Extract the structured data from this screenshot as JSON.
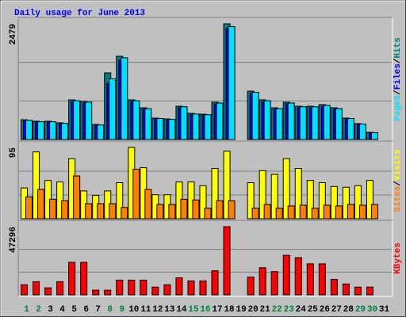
{
  "chart_data": {
    "type": "bar",
    "title": "Daily usage for June 2013",
    "separator": "/",
    "categories": [
      "1",
      "2",
      "3",
      "4",
      "5",
      "6",
      "7",
      "8",
      "9",
      "10",
      "11",
      "12",
      "13",
      "14",
      "15",
      "16",
      "17",
      "18",
      "19",
      "20",
      "21",
      "22",
      "23",
      "24",
      "25",
      "26",
      "27",
      "28",
      "29",
      "30",
      "31"
    ],
    "category_colors": [
      "#008040",
      "#008040",
      "#000000",
      "#000000",
      "#000000",
      "#000000",
      "#000000",
      "#008040",
      "#008040",
      "#000000",
      "#000000",
      "#000000",
      "#000000",
      "#000000",
      "#008040",
      "#008040",
      "#000000",
      "#000000",
      "#000000",
      "#000000",
      "#000000",
      "#008040",
      "#008040",
      "#000000",
      "#000000",
      "#000000",
      "#000000",
      "#000000",
      "#008040",
      "#008040",
      "#000000"
    ],
    "panels": [
      {
        "ylim": [
          0,
          2479
        ],
        "yticks": [
          2479
        ],
        "series": [
          {
            "name": "Hits",
            "color": "#008080",
            "values": [
              424,
              391,
              391,
              357,
              849,
              815,
              323,
              1426,
              1783,
              849,
              679,
              458,
              441,
              713,
              560,
              543,
              798,
              2479,
              null,
              1036,
              849,
              679,
              798,
              713,
              713,
              747,
              679,
              458,
              340,
              153,
              null
            ]
          },
          {
            "name": "Files",
            "color": "#0000ff",
            "values": [
              400,
              370,
              370,
              340,
              810,
              780,
              300,
              1200,
              1700,
              810,
              650,
              440,
              420,
              680,
              530,
              520,
              760,
              2380,
              null,
              990,
              810,
              650,
              760,
              680,
              680,
              710,
              650,
              440,
              320,
              140,
              null
            ]
          },
          {
            "name": "Pages",
            "color": "#00e0ff",
            "values": [
              410,
              380,
              380,
              345,
              830,
              800,
              310,
              1300,
              1750,
              830,
              660,
              450,
              430,
              700,
              545,
              530,
              780,
              2420,
              null,
              1010,
              830,
              660,
              780,
              700,
              700,
              730,
              660,
              450,
              330,
              145,
              null
            ]
          }
        ]
      },
      {
        "ylim": [
          0,
          95
        ],
        "yticks": [
          95
        ],
        "series": [
          {
            "name": "Visits",
            "color": "#ffff00",
            "values": [
              41,
              89,
              51,
              49,
              80,
              37,
              31,
              37,
              48,
              95,
              68,
              32,
              32,
              49,
              49,
              44,
              67,
              90,
              null,
              48,
              64,
              59,
              80,
              67,
              51,
              48,
              43,
              42,
              44,
              51,
              null
            ]
          },
          {
            "name": "Sites",
            "color": "#ff8000",
            "values": [
              29,
              39,
              26,
              24,
              57,
              20,
              20,
              20,
              15,
              66,
              39,
              19,
              19,
              26,
              25,
              14,
              24,
              24,
              null,
              14,
              19,
              14,
              17,
              18,
              14,
              18,
              17,
              19,
              18,
              19,
              null
            ]
          }
        ]
      },
      {
        "ylim": [
          0,
          47296
        ],
        "yticks": [
          47296
        ],
        "series": [
          {
            "name": "KBytes",
            "color": "#ff0000",
            "values": [
              6982,
              9130,
              4833,
              9130,
              22553,
              22553,
              3222,
              3222,
              10204,
              10204,
              10204,
              5374,
              6982,
              11824,
              9674,
              9674,
              16661,
              47296,
              null,
              12362,
              18811,
              16124,
              27410,
              25798,
              21498,
              21498,
              10749,
              7524,
              5374,
              5374,
              null
            ]
          }
        ]
      }
    ]
  }
}
